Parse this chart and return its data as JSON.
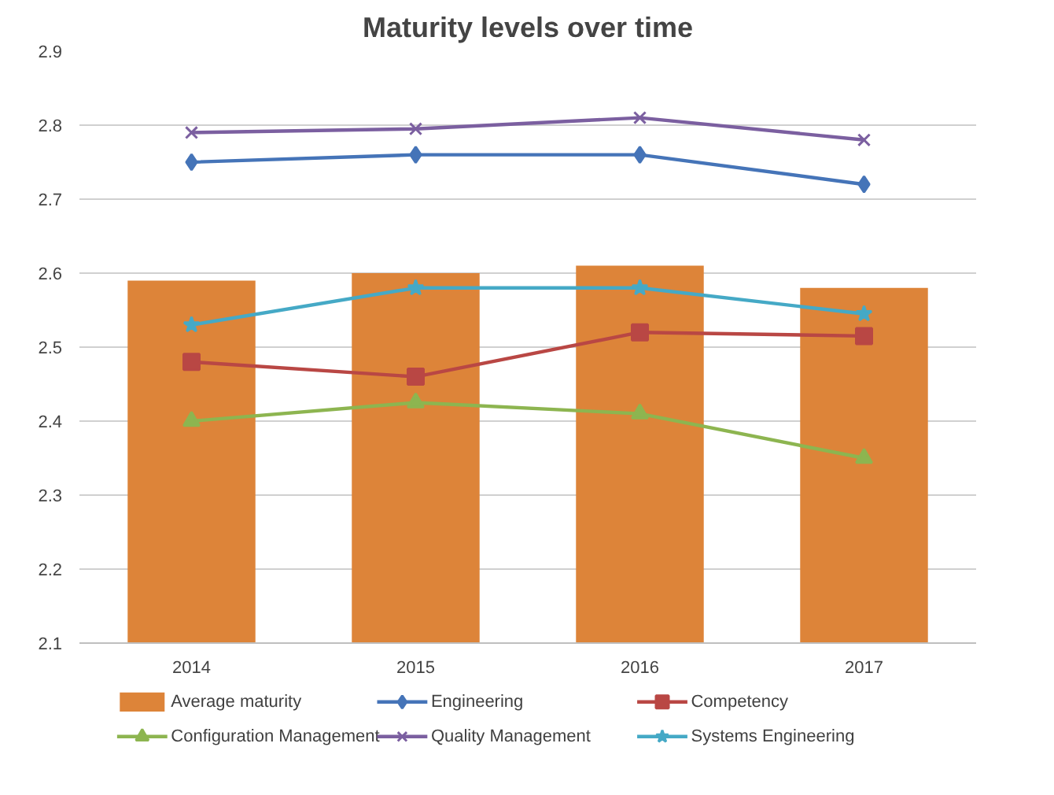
{
  "chart_data": {
    "type": "line",
    "title": "Maturity levels over time",
    "categories": [
      "2014",
      "2015",
      "2016",
      "2017"
    ],
    "ylim": [
      2.1,
      2.9
    ],
    "yticks": [
      2.1,
      2.2,
      2.3,
      2.4,
      2.5,
      2.6,
      2.7,
      2.8,
      2.9
    ],
    "grid": "y",
    "legend": "bottom",
    "series": [
      {
        "name": "Average maturity",
        "type": "bar",
        "color": "#dd8439",
        "values": [
          2.59,
          2.6,
          2.61,
          2.58
        ]
      },
      {
        "name": "Engineering",
        "color": "#4574b8",
        "marker": "diamond",
        "values": [
          2.75,
          2.76,
          2.76,
          2.72
        ]
      },
      {
        "name": "Competency",
        "color": "#b94744",
        "marker": "square",
        "values": [
          2.48,
          2.46,
          2.52,
          2.515
        ]
      },
      {
        "name": "Configuration Management",
        "color": "#8db550",
        "marker": "triangle",
        "values": [
          2.4,
          2.425,
          2.41,
          2.35
        ]
      },
      {
        "name": "Quality Management",
        "color": "#7b5fa0",
        "marker": "cross",
        "values": [
          2.79,
          2.795,
          2.81,
          2.78
        ]
      },
      {
        "name": "Systems Engineering",
        "color": "#45a9c6",
        "marker": "star",
        "values": [
          2.53,
          2.58,
          2.58,
          2.545
        ]
      }
    ]
  }
}
